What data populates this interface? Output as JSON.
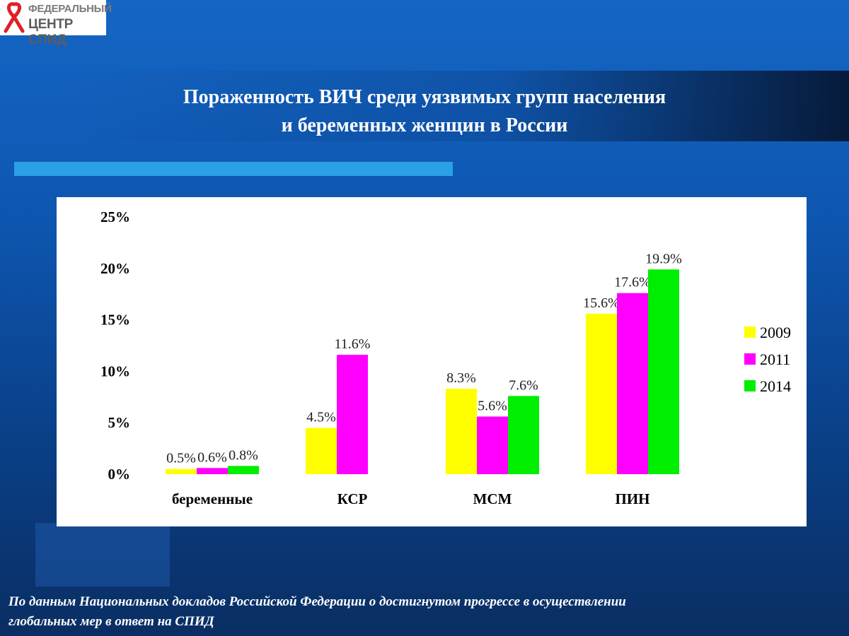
{
  "logo": {
    "line1": "ФЕДЕРАЛЬНЫЙ",
    "line2": "ЦЕНТР СПИД",
    "icon": "red-ribbon-icon"
  },
  "title": {
    "line1": "Пораженность  ВИЧ среди уязвимых групп населения",
    "line2": "и беременных женщин в России"
  },
  "footer": {
    "line1": "По данным Национальных докладов  Российской Федерации о достигнутом прогрессе  в осуществлении",
    "line2": "глобальных мер  в ответ на СПИД"
  },
  "chart_data": {
    "type": "bar",
    "categories": [
      "беременные",
      "КСР",
      "МСМ",
      "ПИН"
    ],
    "series": [
      {
        "name": "2009",
        "color": "#ffff00",
        "values": [
          0.5,
          4.5,
          8.3,
          15.6
        ],
        "labels": [
          "0.5%",
          "4.5%",
          "8.3%",
          "15.6%"
        ]
      },
      {
        "name": "2011",
        "color": "#ff00ff",
        "values": [
          0.6,
          11.6,
          5.6,
          17.6
        ],
        "labels": [
          "0.6%",
          "11.6%",
          "5.6%",
          "17.6%"
        ]
      },
      {
        "name": "2014",
        "color": "#00ee00",
        "values": [
          0.8,
          null,
          7.6,
          19.9
        ],
        "labels": [
          "0.8%",
          "",
          "7.6%",
          "19.9%"
        ]
      }
    ],
    "yticks": [
      "0%",
      "5%",
      "10%",
      "15%",
      "20%",
      "25%"
    ],
    "ylim": [
      0,
      25
    ],
    "grid": false,
    "legend": "right"
  }
}
